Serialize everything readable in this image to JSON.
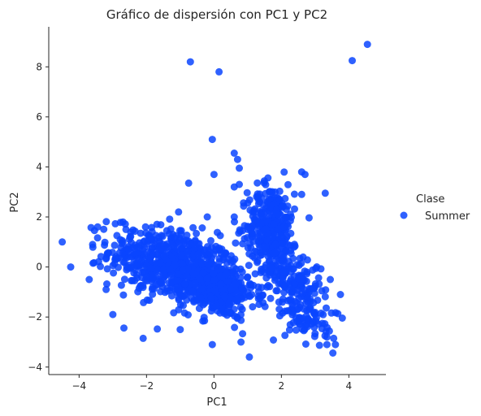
{
  "chart_data": {
    "type": "scatter",
    "title": "Gráfico de dispersión con PC1 y PC2",
    "xlabel": "PC1",
    "ylabel": "PC2",
    "xlim": [
      -4.9,
      5.1
    ],
    "ylim": [
      -4.3,
      9.6
    ],
    "xticks": [
      "−4",
      "−2",
      "0",
      "2",
      "4"
    ],
    "xtick_values": [
      -4,
      -2,
      0,
      2,
      4
    ],
    "yticks": [
      "−4",
      "−2",
      "0",
      "2",
      "4",
      "6",
      "8"
    ],
    "ytick_values": [
      -4,
      -2,
      0,
      2,
      4,
      6,
      8
    ],
    "grid": false,
    "legend": {
      "title": "Clase",
      "position": "right",
      "entries": [
        "Summer"
      ]
    },
    "colors": {
      "Summer": "#0a45ff"
    },
    "series": [
      {
        "name": "Summer",
        "clusters": [
          {
            "cx": -1.2,
            "cy": 0.1,
            "sx": 0.95,
            "sy": 0.75,
            "rho": -0.35,
            "n": 650
          },
          {
            "cx": 0.1,
            "cy": -0.9,
            "sx": 0.55,
            "sy": 0.55,
            "rho": -0.2,
            "n": 320
          },
          {
            "cx": 1.7,
            "cy": 1.6,
            "sx": 0.35,
            "sy": 0.85,
            "rho": 0.0,
            "n": 330
          },
          {
            "cx": 2.3,
            "cy": -0.5,
            "sx": 0.45,
            "sy": 0.6,
            "rho": -0.3,
            "n": 160
          },
          {
            "cx": 2.8,
            "cy": -2.0,
            "sx": 0.35,
            "sy": 0.5,
            "rho": 0.0,
            "n": 80
          }
        ],
        "points": [
          [
            -4.5,
            1.0
          ],
          [
            -4.25,
            0.0
          ],
          [
            -3.7,
            -0.5
          ],
          [
            -3.6,
            0.9
          ],
          [
            -3.45,
            1.6
          ],
          [
            -3.2,
            -0.9
          ],
          [
            -3.0,
            -1.9
          ],
          [
            -2.7,
            1.8
          ],
          [
            -0.7,
            8.2
          ],
          [
            0.15,
            7.8
          ],
          [
            4.55,
            8.9
          ],
          [
            4.1,
            8.25
          ],
          [
            -0.05,
            5.1
          ],
          [
            0.6,
            4.55
          ],
          [
            0.7,
            4.3
          ],
          [
            0.75,
            3.95
          ],
          [
            0.0,
            3.7
          ],
          [
            -0.75,
            3.35
          ],
          [
            0.6,
            3.2
          ],
          [
            0.75,
            3.3
          ],
          [
            3.3,
            2.95
          ],
          [
            2.6,
            3.8
          ],
          [
            2.7,
            3.7
          ],
          [
            2.6,
            2.9
          ],
          [
            1.05,
            -3.6
          ],
          [
            3.35,
            -3.1
          ],
          [
            3.6,
            -3.1
          ],
          [
            3.55,
            -2.85
          ],
          [
            3.35,
            -2.8
          ],
          [
            0.8,
            -3.0
          ],
          [
            -0.05,
            -3.1
          ],
          [
            -2.1,
            -2.85
          ],
          [
            -1.0,
            -2.5
          ],
          [
            3.45,
            -0.5
          ],
          [
            3.75,
            -1.1
          ],
          [
            0.6,
            2.0
          ],
          [
            1.5,
            0.8
          ],
          [
            1.0,
            1.5
          ],
          [
            -0.2,
            2.0
          ],
          [
            -1.05,
            2.2
          ]
        ]
      }
    ]
  }
}
